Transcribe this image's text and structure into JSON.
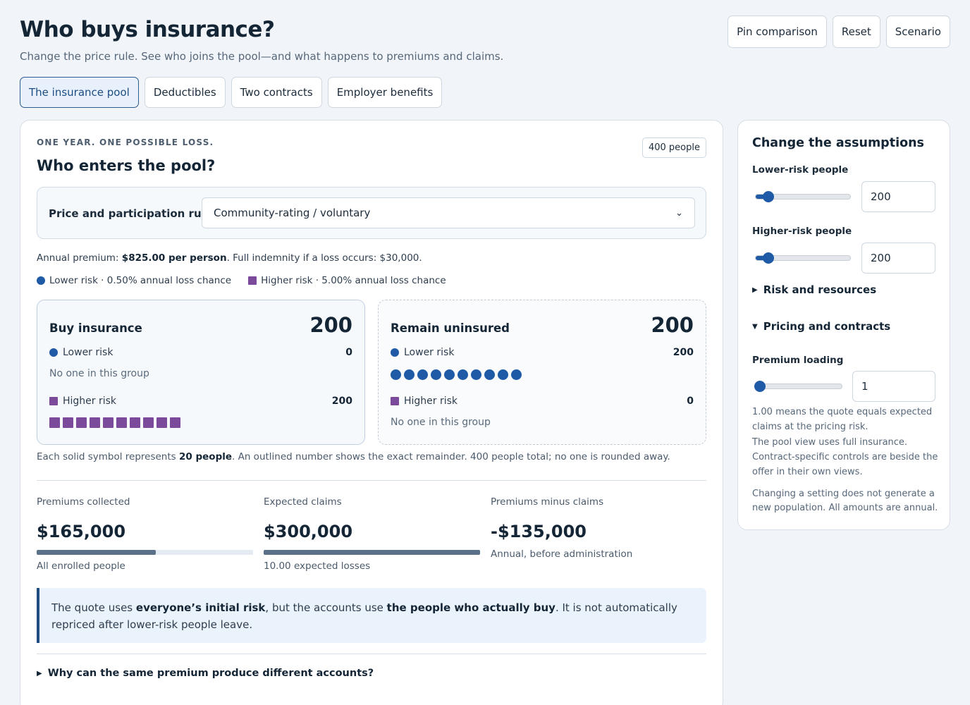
{
  "header": {
    "title": "Who buys insurance?",
    "subtitle": "Change the price rule. See who joins the pool—and what happens to premiums and claims.",
    "actions": [
      "Pin comparison",
      "Reset",
      "Scenario"
    ]
  },
  "tabs": [
    {
      "label": "The insurance pool",
      "active": true
    },
    {
      "label": "Deductibles",
      "active": false
    },
    {
      "label": "Two contracts",
      "active": false
    },
    {
      "label": "Employer benefits",
      "active": false
    }
  ],
  "pool": {
    "eyebrow": "ONE YEAR. ONE POSSIBLE LOSS.",
    "people_badge": "400 people",
    "heading": "Who enters the pool?",
    "rule_label": "Price and participation rule",
    "rule_value": "Community-rating / voluntary",
    "premium_prefix": "Annual premium: ",
    "premium_value": "$825.00 per person",
    "premium_suffix": ". Full indemnity if a loss occurs: $30,000.",
    "legend_lower": "Lower risk · 0.50% annual loss chance",
    "legend_higher": "Higher risk · 5.00% annual loss chance",
    "buy": {
      "title": "Buy insurance",
      "count": "200",
      "lower_label": "Lower risk",
      "lower_count": "0",
      "lower_empty": "No one in this group",
      "higher_label": "Higher risk",
      "higher_count": "200",
      "higher_symbols": 10
    },
    "remain": {
      "title": "Remain uninsured",
      "count": "200",
      "lower_label": "Lower risk",
      "lower_count": "200",
      "lower_symbols": 10,
      "higher_label": "Higher risk",
      "higher_count": "0",
      "higher_empty": "No one in this group"
    },
    "note_prefix": "Each solid symbol represents ",
    "note_bold": "20 people",
    "note_suffix": ". An outlined number shows the exact remainder. 400 people total; no one is rounded away.",
    "metrics": [
      {
        "label": "Premiums collected",
        "value": "$165,000",
        "bar_fraction": 0.55,
        "foot": "All enrolled people"
      },
      {
        "label": "Expected claims",
        "value": "$300,000",
        "bar_fraction": 1.0,
        "foot": "10.00 expected losses"
      },
      {
        "label": "Premiums minus claims",
        "value": "-$135,000",
        "foot": "Annual, before administration"
      }
    ],
    "callout_1": "The quote uses ",
    "callout_b1": "everyone’s initial risk",
    "callout_2": ", but the accounts use ",
    "callout_b2": "the people who actually buy",
    "callout_3": ". It is not automatically repriced after lower-risk people leave.",
    "why": "Why can the same premium produce different accounts?"
  },
  "assumptions": {
    "heading": "Change the assumptions",
    "lower_label": "Lower-risk people",
    "lower_value": "200",
    "higher_label": "Higher-risk people",
    "higher_value": "200",
    "risk_section": "Risk and resources",
    "pricing_section": "Pricing and contracts",
    "loading_label": "Premium loading",
    "loading_value": "1",
    "help_1": "1.00 means the quote equals expected claims at the pricing risk.",
    "help_2": "The pool view uses full insurance. Contract-specific controls are beside the offer in their own views.",
    "help_3": "Changing a setting does not generate a new population. All amounts are annual."
  },
  "colors": {
    "lower_risk": "#1f5aa6",
    "higher_risk": "#7b4a9a",
    "accent": "#1e4d82"
  }
}
